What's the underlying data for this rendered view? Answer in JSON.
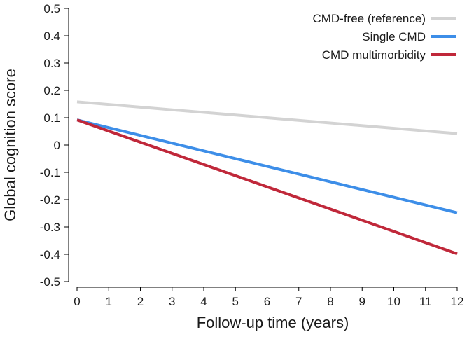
{
  "chart_data": {
    "type": "line",
    "title": "",
    "xlabel": "Follow-up time (years)",
    "ylabel": "Global cognition score",
    "xlim": [
      0,
      12
    ],
    "ylim": [
      -0.5,
      0.5
    ],
    "x_ticks": [
      0,
      1,
      2,
      3,
      4,
      5,
      6,
      7,
      8,
      9,
      10,
      11,
      12
    ],
    "x_tick_labels": [
      "0",
      "1",
      "2",
      "3",
      "4",
      "5",
      "6",
      "7",
      "8",
      "9",
      "10",
      "11",
      "12"
    ],
    "y_ticks": [
      0.5,
      0.4,
      0.3,
      0.2,
      0.1,
      0,
      -0.1,
      -0.2,
      -0.3,
      -0.4,
      -0.5
    ],
    "y_tick_labels": [
      "0.5",
      "0.4",
      "0.3",
      "0.2",
      "0.1",
      "0",
      "-0.1",
      "-0.2",
      "-0.3",
      "-0.4",
      "-0.5"
    ],
    "grid": false,
    "legend_position": "top-right",
    "series": [
      {
        "name": "CMD-free (reference)",
        "color": "#d3d3d3",
        "x": [
          0,
          12
        ],
        "values": [
          0.158,
          0.042
        ]
      },
      {
        "name": "Single CMD",
        "color": "#3d8ee8",
        "x": [
          0,
          12
        ],
        "values": [
          0.092,
          -0.248
        ]
      },
      {
        "name": "CMD multimorbidity",
        "color": "#c0283a",
        "x": [
          0,
          12
        ],
        "values": [
          0.092,
          -0.398
        ]
      }
    ]
  }
}
